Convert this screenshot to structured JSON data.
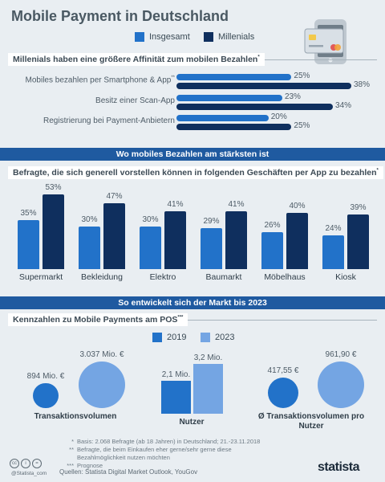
{
  "title": "Mobile Payment in Deutschland",
  "legend": {
    "insgesamt": "Insgesamt",
    "millenials": "Millenials"
  },
  "colors": {
    "insgesamt": "#2272c9",
    "millenials": "#0f2f5e",
    "y2019": "#2272c9",
    "y2023": "#74a5e3",
    "band": "#1f5aa0"
  },
  "section1": {
    "heading": "Millenials haben eine größere Affinität zum mobilen Bezahlen",
    "mark": "*"
  },
  "band1": "Wo mobiles Bezahlen am stärksten ist",
  "section2": {
    "heading": "Befragte, die sich generell vorstellen können in folgenden Geschäften per App zu bezahlen",
    "mark": "*"
  },
  "band2": "So entwickelt sich der Markt bis 2023",
  "section3": {
    "heading": "Kennzahlen zu Mobile Payments am POS",
    "mark": "***"
  },
  "legend3": {
    "y2019": "2019",
    "y2023": "2023"
  },
  "chart_data": [
    {
      "type": "bar",
      "orientation": "horizontal",
      "categories": [
        "Mobiles bezahlen per Smartphone & App",
        "Besitz einer Scan-App",
        "Registrierung bei Payment-Anbietern"
      ],
      "category_marks": [
        "**",
        "",
        ""
      ],
      "series": [
        {
          "name": "Insgesamt",
          "values": [
            25,
            23,
            20
          ],
          "labels": [
            "25%",
            "23%",
            "20%"
          ]
        },
        {
          "name": "Millenials",
          "values": [
            38,
            34,
            25
          ],
          "labels": [
            "38%",
            "34%",
            "25%"
          ]
        }
      ],
      "xlim": [
        0,
        38
      ]
    },
    {
      "type": "bar",
      "categories": [
        "Supermarkt",
        "Bekleidung",
        "Elektro",
        "Baumarkt",
        "Möbelhaus",
        "Kiosk"
      ],
      "series": [
        {
          "name": "Insgesamt",
          "values": [
            35,
            30,
            30,
            29,
            26,
            24
          ],
          "labels": [
            "35%",
            "30%",
            "30%",
            "29%",
            "26%",
            "24%"
          ]
        },
        {
          "name": "Millenials",
          "values": [
            53,
            47,
            41,
            41,
            40,
            39
          ],
          "labels": [
            "53%",
            "47%",
            "41%",
            "41%",
            "40%",
            "39%"
          ]
        }
      ],
      "ylim": [
        0,
        53
      ]
    },
    {
      "type": "bubble",
      "title": "Transaktionsvolumen",
      "series": [
        {
          "name": "2019",
          "value": 894,
          "label": "894 Mio. €"
        },
        {
          "name": "2023",
          "value": 3037,
          "label": "3.037 Mio. €"
        }
      ]
    },
    {
      "type": "bar",
      "title": "Nutzer",
      "categories": [
        "2019",
        "2023"
      ],
      "values": [
        2.1,
        3.2
      ],
      "labels": [
        "2,1 Mio.",
        "3,2 Mio."
      ]
    },
    {
      "type": "bubble",
      "title": "Ø Transaktionsvolumen pro Nutzer",
      "series": [
        {
          "name": "2019",
          "value": 417.55,
          "label": "417,55 €"
        },
        {
          "name": "2023",
          "value": 961.9,
          "label": "961,90 €"
        }
      ]
    }
  ],
  "footnotes": [
    {
      "mark": "*",
      "text": "Basis: 2.068 Befragte (ab 18 Jahren) in Deutschland; 21.-23.11.2018"
    },
    {
      "mark": "**",
      "text": "Befragte, die beim Einkaufen eher gerne/sehr gerne diese"
    },
    {
      "mark": "",
      "text": "Bezahlmöglichkeit nutzen möchten"
    },
    {
      "mark": "***",
      "text": "Prognose"
    }
  ],
  "sources": "Quellen: Statista Digital Market Outlook, YouGov",
  "brand": "@Statista_com",
  "logo": "statista",
  "cc_icons": [
    "cc",
    "i",
    "="
  ]
}
